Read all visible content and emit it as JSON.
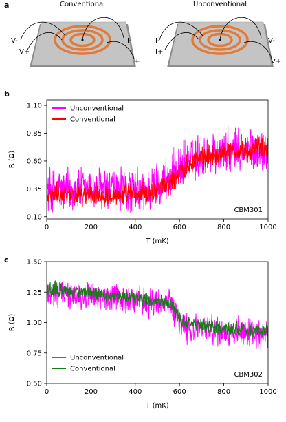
{
  "panels": {
    "a": {
      "letter": "a",
      "devices": [
        {
          "title": "Conventional",
          "labels": [
            "V-",
            "V+",
            "I-",
            "I+"
          ]
        },
        {
          "title": "Unconventional",
          "labels": [
            "I-",
            "I+",
            "V-",
            "V+"
          ]
        }
      ]
    }
  },
  "colors": {
    "unconventional": "#ff00ff",
    "conventional_b": "#ff0000",
    "conventional_c": "#1a7a1a",
    "ring": "#e07b3a",
    "plate": "#bfbfbf"
  },
  "chart_data": [
    {
      "type": "line",
      "panel": "b",
      "xlabel": "T (mK)",
      "ylabel": "R (Ω)",
      "xlim": [
        0,
        1000
      ],
      "ylim": [
        0.08,
        1.15
      ],
      "xticks": [
        "0",
        "200",
        "400",
        "600",
        "800",
        "1000"
      ],
      "yticks": [
        "0.10",
        "0.35",
        "0.60",
        "0.85",
        "1.10"
      ],
      "annotation": "CBM301",
      "legend_position": "top-left",
      "series": [
        {
          "name": "Unconventional",
          "trend": [
            [
              0,
              0.35
            ],
            [
              450,
              0.33
            ],
            [
              550,
              0.45
            ],
            [
              650,
              0.62
            ],
            [
              800,
              0.68
            ],
            [
              1000,
              0.7
            ]
          ],
          "noise": 0.25
        },
        {
          "name": "Conventional",
          "trend": [
            [
              0,
              0.3
            ],
            [
              450,
              0.3
            ],
            [
              550,
              0.4
            ],
            [
              650,
              0.6
            ],
            [
              800,
              0.68
            ],
            [
              1000,
              0.72
            ]
          ],
          "noise": 0.12
        }
      ]
    },
    {
      "type": "line",
      "panel": "c",
      "xlabel": "T (mK)",
      "ylabel": "R (Ω)",
      "xlim": [
        0,
        1000
      ],
      "ylim": [
        0.5,
        1.5
      ],
      "xticks": [
        "0",
        "200",
        "400",
        "600",
        "800",
        "1000"
      ],
      "yticks": [
        "0.50",
        "0.75",
        "1.00",
        "1.25",
        "1.50"
      ],
      "annotation": "CBM302",
      "legend_position": "bottom-left",
      "series": [
        {
          "name": "Unconventional",
          "trend": [
            [
              0,
              1.25
            ],
            [
              400,
              1.18
            ],
            [
              560,
              1.15
            ],
            [
              620,
              0.95
            ],
            [
              800,
              0.92
            ],
            [
              1000,
              0.9
            ]
          ],
          "noise": 0.15
        },
        {
          "name": "Conventional",
          "trend": [
            [
              0,
              1.28
            ],
            [
              400,
              1.2
            ],
            [
              560,
              1.15
            ],
            [
              620,
              1.0
            ],
            [
              800,
              0.95
            ],
            [
              1000,
              0.93
            ]
          ],
          "noise": 0.07
        }
      ]
    }
  ]
}
